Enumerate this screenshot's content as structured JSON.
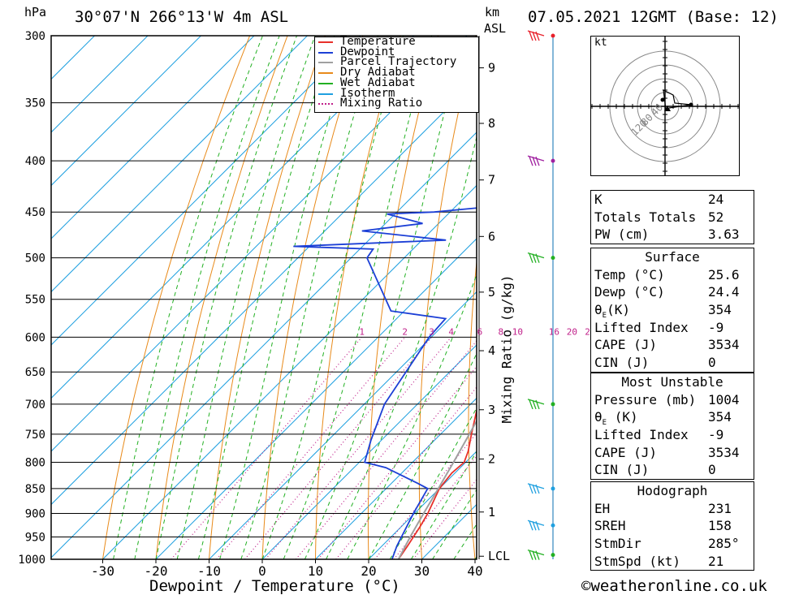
{
  "header": {
    "hpa_unit": "hPa",
    "location": "30°07'N  266°13'W  4m  ASL",
    "km_unit": "km",
    "asl_unit": "ASL",
    "datetime": "07.05.2021  12GMT  (Base: 12)"
  },
  "footer": {
    "credit": "©weatheronline.co.uk"
  },
  "legend": [
    {
      "label": "Temperature",
      "color": "#e8302a",
      "style": "solid"
    },
    {
      "label": "Dewpoint",
      "color": "#1c3fd6",
      "style": "solid"
    },
    {
      "label": "Parcel Trajectory",
      "color": "#a0a0a0",
      "style": "solid"
    },
    {
      "label": "Dry Adiabat",
      "color": "#e88a1a",
      "style": "solid"
    },
    {
      "label": "Wet Adiabat",
      "color": "#22b022",
      "style": "solid"
    },
    {
      "label": "Isotherm",
      "color": "#1fa0e0",
      "style": "solid"
    },
    {
      "label": "Mixing Ratio",
      "color": "#c0208a",
      "style": "dotted"
    }
  ],
  "hodograph": {
    "unit": "kt",
    "rings": [
      "40",
      "80",
      "120"
    ],
    "ring_values": [
      40,
      80,
      120,
      160
    ]
  },
  "indices": {
    "general": [
      {
        "key": "K",
        "value": "24"
      },
      {
        "key": "Totals Totals",
        "value": "52"
      },
      {
        "key": "PW (cm)",
        "value": "3.63"
      }
    ],
    "surface": {
      "title": "Surface",
      "rows": [
        {
          "key": "Temp (°C)",
          "value": "25.6"
        },
        {
          "key": "Dewp (°C)",
          "value": "24.4"
        },
        {
          "key": "θE(K)",
          "value": "354"
        },
        {
          "key": "Lifted Index",
          "value": "-9"
        },
        {
          "key": "CAPE (J)",
          "value": "3534"
        },
        {
          "key": "CIN (J)",
          "value": "0"
        }
      ]
    },
    "most_unstable": {
      "title": "Most Unstable",
      "rows": [
        {
          "key": "Pressure (mb)",
          "value": "1004"
        },
        {
          "key": "θE (K)",
          "value": "354"
        },
        {
          "key": "Lifted Index",
          "value": "-9"
        },
        {
          "key": "CAPE (J)",
          "value": "3534"
        },
        {
          "key": "CIN (J)",
          "value": "0"
        }
      ]
    },
    "hodograph_stats": {
      "title": "Hodograph",
      "rows": [
        {
          "key": "EH",
          "value": "231"
        },
        {
          "key": "SREH",
          "value": "158"
        },
        {
          "key": "StmDir",
          "value": "285°"
        },
        {
          "key": "StmSpd (kt)",
          "value": "21"
        }
      ]
    }
  },
  "chart_data": {
    "type": "line",
    "title": "",
    "xlabel": "Dewpoint / Temperature (°C)",
    "ylabel": "Mixing Ratio (g/kg)",
    "xlim": [
      -40,
      40
    ],
    "pressure_range_hpa": [
      300,
      1000
    ],
    "pressure_ticks": [
      300,
      350,
      400,
      450,
      500,
      550,
      600,
      650,
      700,
      750,
      800,
      850,
      900,
      950,
      1000
    ],
    "x_ticks": [
      -30,
      -20,
      -10,
      0,
      10,
      20,
      30,
      40
    ],
    "km_ticks": [
      {
        "label": "9",
        "p": 323
      },
      {
        "label": "8",
        "p": 367
      },
      {
        "label": "7",
        "p": 418
      },
      {
        "label": "6",
        "p": 476
      },
      {
        "label": "5",
        "p": 541
      },
      {
        "label": "4",
        "p": 619
      },
      {
        "label": "3",
        "p": 709
      },
      {
        "label": "2",
        "p": 794
      },
      {
        "label": "1",
        "p": 897
      },
      {
        "label": "LCL",
        "p": 993
      }
    ],
    "mixing_ratio_labels": [
      "1",
      "2",
      "3",
      "4",
      "6",
      "8",
      "10",
      "16",
      "20",
      "25"
    ],
    "series": [
      {
        "name": "Temperature",
        "color": "#e8302a",
        "points": [
          [
            1000,
            25.6
          ],
          [
            970,
            24.8
          ],
          [
            930,
            23.6
          ],
          [
            900,
            22.5
          ],
          [
            850,
            20.0
          ],
          [
            820,
            19.4
          ],
          [
            800,
            19.7
          ],
          [
            780,
            18.4
          ],
          [
            750,
            15.8
          ],
          [
            700,
            11.4
          ],
          [
            650,
            6.4
          ],
          [
            600,
            0.4
          ],
          [
            580,
            -1.8
          ],
          [
            570,
            0.0
          ],
          [
            550,
            -1.8
          ],
          [
            500,
            -6.2
          ],
          [
            470,
            -10.0
          ],
          [
            450,
            -12.2
          ],
          [
            400,
            -20.0
          ],
          [
            350,
            -29.0
          ],
          [
            320,
            -34.0
          ],
          [
            300,
            -38.4
          ]
        ]
      },
      {
        "name": "Dewpoint",
        "color": "#1c3fd6",
        "points": [
          [
            1000,
            24.4
          ],
          [
            970,
            22.8
          ],
          [
            900,
            19.8
          ],
          [
            850,
            17.8
          ],
          [
            840,
            15.0
          ],
          [
            810,
            6.0
          ],
          [
            800,
            1.0
          ],
          [
            760,
            -2.0
          ],
          [
            700,
            -6.2
          ],
          [
            600,
            -10.4
          ],
          [
            575,
            -10.8
          ],
          [
            565,
            -22.5
          ],
          [
            500,
            -37.0
          ],
          [
            490,
            -37.5
          ],
          [
            487,
            -53.0
          ],
          [
            480,
            -25.5
          ],
          [
            470,
            -43.0
          ],
          [
            462,
            -33.0
          ],
          [
            452,
            -41.5
          ],
          [
            450,
            -33.0
          ],
          [
            442,
            -19.0
          ],
          [
            430,
            -18.3
          ],
          [
            400,
            -27.0
          ],
          [
            385,
            -32.0
          ],
          [
            350,
            -44.0
          ],
          [
            337,
            -36.0
          ],
          [
            320,
            -36.0
          ],
          [
            305,
            -41.0
          ],
          [
            300,
            -42.5
          ]
        ]
      },
      {
        "name": "Parcel Trajectory",
        "color": "#a0a0a0",
        "points": [
          [
            1000,
            25.6
          ],
          [
            950,
            23.6
          ],
          [
            900,
            21.7
          ],
          [
            850,
            19.8
          ],
          [
            800,
            17.7
          ],
          [
            750,
            15.4
          ],
          [
            700,
            12.9
          ],
          [
            650,
            10.0
          ],
          [
            600,
            6.8
          ],
          [
            550,
            3.0
          ],
          [
            500,
            -1.4
          ],
          [
            450,
            -6.7
          ],
          [
            400,
            -13.0
          ],
          [
            370,
            -17.7
          ]
        ]
      }
    ],
    "wind_barbs_hpa": [
      300,
      400,
      500,
      700,
      850,
      925,
      990
    ]
  }
}
